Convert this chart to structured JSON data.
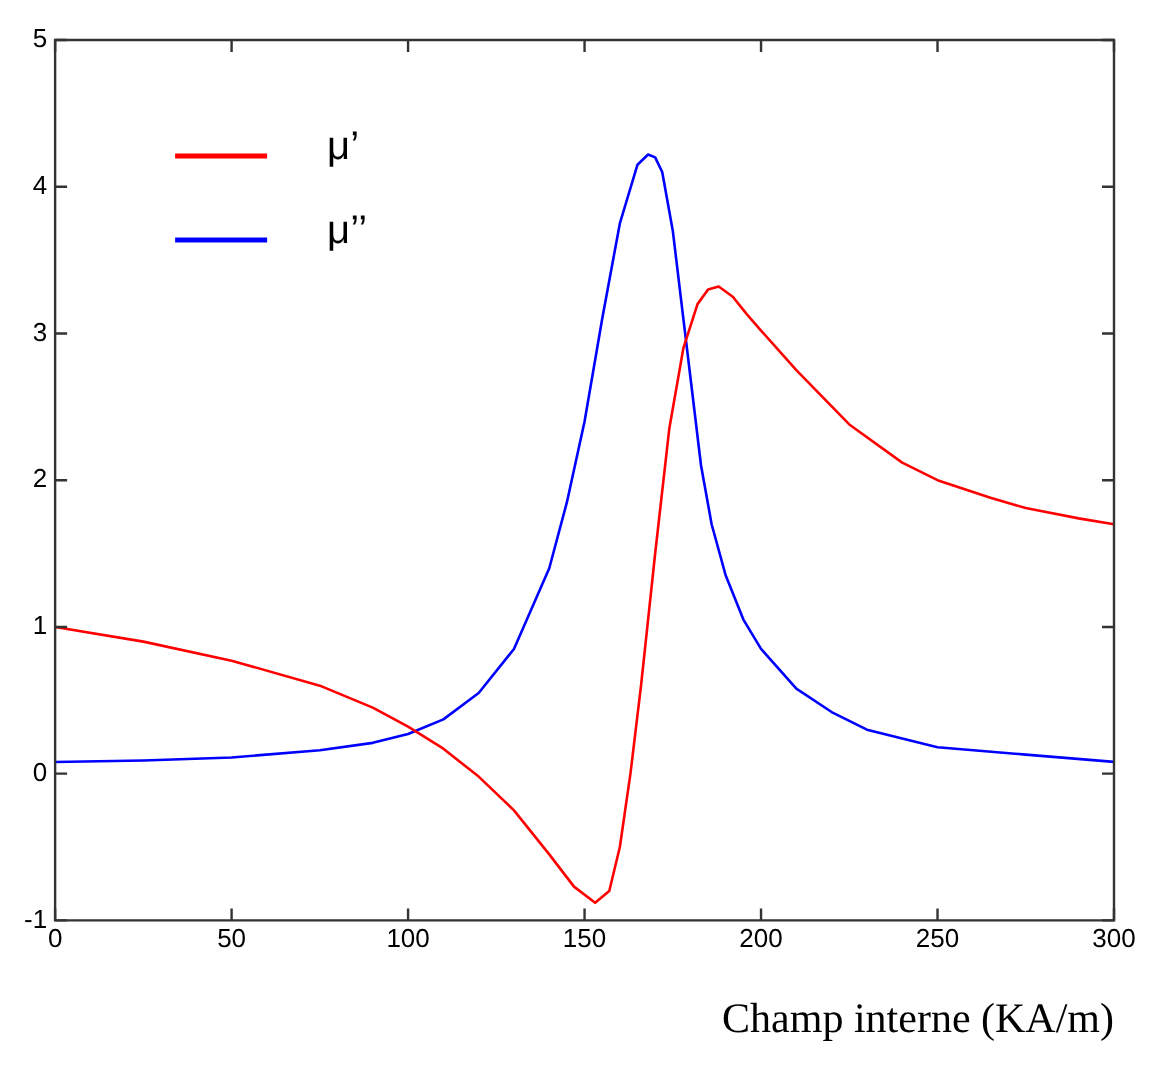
{
  "chart_data": {
    "type": "line",
    "xlabel": "Champ interne (KA/m)",
    "xlim": [
      0,
      300
    ],
    "xticks": [
      0,
      50,
      100,
      150,
      200,
      250,
      300
    ],
    "ylim": [
      -1,
      5
    ],
    "yticks": [
      -1,
      0,
      1,
      2,
      3,
      4,
      5
    ],
    "grid": false,
    "legend": "top left",
    "marker": "none",
    "line_style": "solid",
    "series": [
      {
        "name": "μ’",
        "color": "#ff0000",
        "x": [
          0,
          25,
          50,
          75,
          90,
          100,
          110,
          120,
          130,
          140,
          147,
          153,
          157,
          160,
          163,
          166,
          170,
          174,
          178,
          182,
          185,
          188,
          192,
          196,
          200,
          210,
          225,
          240,
          250,
          265,
          275,
          290,
          300
        ],
        "values": [
          1.0,
          0.9,
          0.77,
          0.6,
          0.45,
          0.32,
          0.17,
          -0.02,
          -0.25,
          -0.55,
          -0.77,
          -0.88,
          -0.8,
          -0.5,
          0.0,
          0.6,
          1.5,
          2.35,
          2.9,
          3.2,
          3.3,
          3.32,
          3.25,
          3.13,
          3.02,
          2.75,
          2.38,
          2.12,
          2.0,
          1.88,
          1.81,
          1.74,
          1.7
        ]
      },
      {
        "name": "μ’’",
        "color": "#0000ff",
        "x": [
          0,
          25,
          50,
          75,
          90,
          100,
          110,
          120,
          130,
          140,
          145,
          150,
          155,
          160,
          165,
          168,
          170,
          172,
          175,
          178,
          180,
          183,
          186,
          190,
          195,
          200,
          210,
          220,
          230,
          250,
          275,
          300
        ],
        "values": [
          0.08,
          0.09,
          0.11,
          0.16,
          0.21,
          0.27,
          0.37,
          0.55,
          0.85,
          1.4,
          1.85,
          2.4,
          3.1,
          3.75,
          4.15,
          4.22,
          4.2,
          4.1,
          3.7,
          3.1,
          2.7,
          2.1,
          1.7,
          1.35,
          1.05,
          0.85,
          0.58,
          0.42,
          0.3,
          0.18,
          0.13,
          0.08
        ]
      }
    ]
  }
}
